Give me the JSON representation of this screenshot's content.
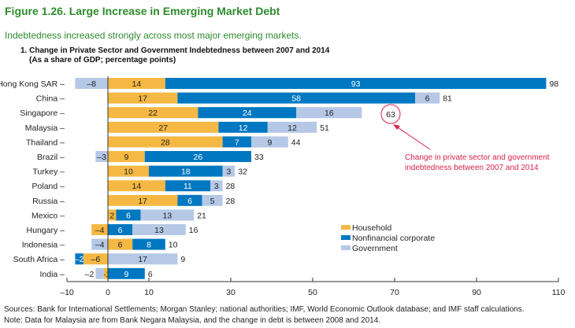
{
  "figure": {
    "title": "Figure 1.26. Large Increase in Emerging Market Debt",
    "subtitle": "Indebtedness increased strongly across most major emerging markets.",
    "panel_title": "1. Change in Private Sector and Government Indebtedness between 2007 and 2014",
    "panel_subtitle": "(As a share of GDP; percentage points)",
    "sources": "Sources: Bank for International Settlements; Morgan Stanley; national authorities; IMF, World Economic Outlook database; and IMF staff calculations.",
    "note": "Note: Data for Malaysia are from Bank Negara Malaysia, and the change in debt is between 2008 and 2014.",
    "annotation": {
      "line1": "Change in private sector and government",
      "line2": "indebtedness between 2007 and 2014",
      "highlight": "63",
      "color": "#D9224A"
    },
    "title_color": "#2E8B2E"
  },
  "chart_data": {
    "type": "bar",
    "orientation": "horizontal",
    "stacked": true,
    "categories": [
      "Hong Kong SAR",
      "China",
      "Singapore",
      "Malaysia",
      "Thailand",
      "Brazil",
      "Turkey",
      "Poland",
      "Russia",
      "Mexico",
      "Hungary",
      "Indonesia",
      "South Africa",
      "India"
    ],
    "series": [
      {
        "name": "Household",
        "color": "#F5B843",
        "values": [
          14,
          17,
          22,
          27,
          28,
          9,
          10,
          14,
          17,
          2,
          -4,
          6,
          -6,
          -1
        ]
      },
      {
        "name": "Nonfinancial corporate",
        "color": "#0077C1",
        "values": [
          93,
          58,
          24,
          12,
          7,
          26,
          18,
          11,
          6,
          6,
          6,
          8,
          -2,
          9
        ]
      },
      {
        "name": "Government",
        "color": "#B5C8E6",
        "values": [
          -8,
          6,
          16,
          12,
          9,
          -3,
          3,
          3,
          5,
          13,
          13,
          -4,
          17,
          -2
        ]
      }
    ],
    "totals": [
      98,
      81,
      63,
      51,
      44,
      33,
      32,
      28,
      28,
      21,
      16,
      10,
      9,
      6
    ],
    "xlim": [
      -10,
      110
    ],
    "xticks": [
      -10,
      0,
      10,
      30,
      50,
      70,
      90,
      110
    ],
    "legend": "lower-middle",
    "grid": false,
    "xlabel": "",
    "ylabel": ""
  }
}
